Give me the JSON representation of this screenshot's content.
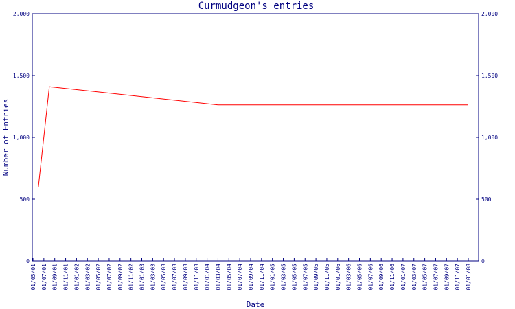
{
  "chart_data": {
    "type": "line",
    "title": "Curmudgeon's entries",
    "xlabel": "Date",
    "ylabel": "Number of Entries",
    "ylim": [
      0,
      2000
    ],
    "y_ticks": [
      "0",
      "500",
      "1,000",
      "1,500",
      "2,000"
    ],
    "y_tick_values": [
      0,
      500,
      1000,
      1500,
      2000
    ],
    "x_tick_labels": [
      "01/05/01",
      "01/07/01",
      "01/09/01",
      "01/11/01",
      "01/01/02",
      "01/03/02",
      "01/05/02",
      "01/07/02",
      "01/09/02",
      "01/11/02",
      "01/01/03",
      "01/03/03",
      "01/05/03",
      "01/07/03",
      "01/09/03",
      "01/11/03",
      "01/01/04",
      "01/03/04",
      "01/05/04",
      "01/07/04",
      "01/09/04",
      "01/11/04",
      "01/01/05",
      "01/03/05",
      "01/05/05",
      "01/07/05",
      "01/09/05",
      "01/11/05",
      "01/01/06",
      "01/03/06",
      "01/05/06",
      "01/07/06",
      "01/09/06",
      "01/11/06",
      "01/01/07",
      "01/03/07",
      "01/05/07",
      "01/07/07",
      "01/09/07",
      "01/11/07",
      "01/01/08"
    ],
    "grid": false,
    "series": [
      {
        "color": "#ff0000",
        "x": [
          "2001-06-01",
          "2001-08-01",
          "2004-03-01",
          "2008-01-01"
        ],
        "values": [
          600,
          1410,
          1262,
          1262
        ]
      }
    ],
    "axis_color": "#000080",
    "text_color": "#000080"
  }
}
